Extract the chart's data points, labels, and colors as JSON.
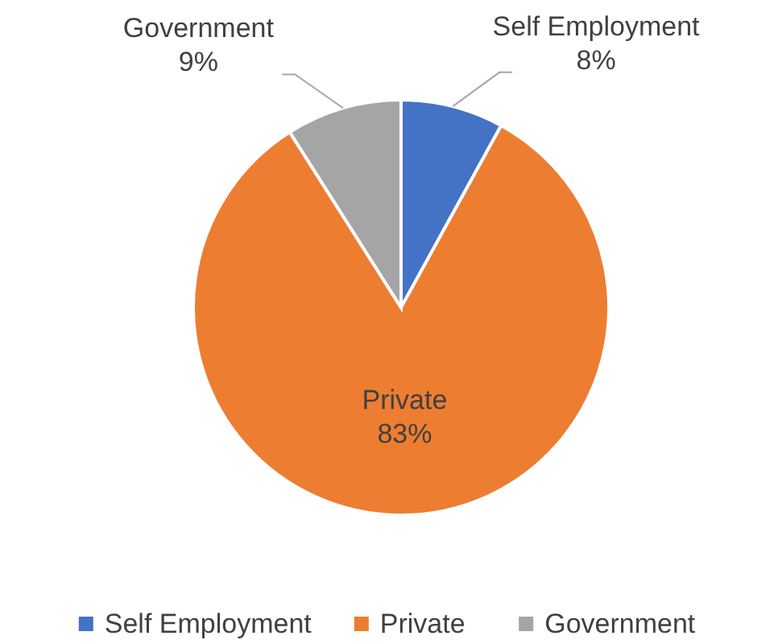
{
  "chart_data": {
    "type": "pie",
    "categories": [
      "Self Employment",
      "Private",
      "Government"
    ],
    "values": [
      8,
      83,
      9
    ],
    "colors": [
      "#4472c4",
      "#ed7d31",
      "#a5a5a5"
    ],
    "value_labels": [
      "8%",
      "83%",
      "9%"
    ],
    "legend": "bottom"
  }
}
